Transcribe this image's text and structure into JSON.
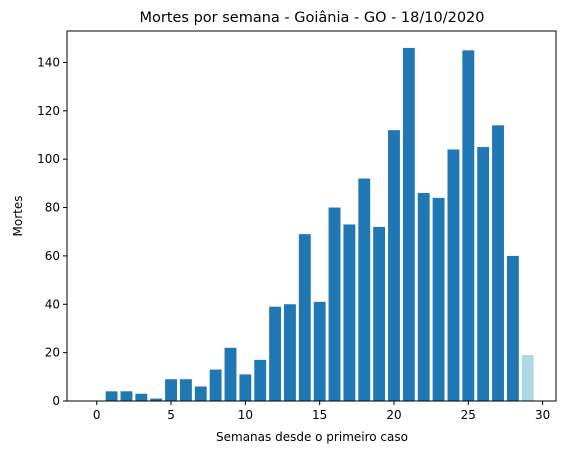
{
  "chart_data": {
    "type": "bar",
    "title": "Mortes por semana - Goiânia - GO - 18/10/2020",
    "xlabel": "Semanas desde o primeiro caso",
    "ylabel": "Mortes",
    "x": [
      0,
      1,
      2,
      3,
      4,
      5,
      6,
      7,
      8,
      9,
      10,
      11,
      12,
      13,
      14,
      15,
      16,
      17,
      18,
      19,
      20,
      21,
      22,
      23,
      24,
      25,
      26,
      27,
      28,
      29
    ],
    "values": [
      0,
      4,
      4,
      3,
      1,
      9,
      9,
      6,
      13,
      22,
      11,
      17,
      39,
      40,
      69,
      41,
      80,
      73,
      92,
      72,
      112,
      146,
      86,
      84,
      104,
      145,
      105,
      114,
      60,
      19
    ],
    "last_bar_incomplete": true,
    "xlim": [
      -2.0,
      30.9
    ],
    "ylim": [
      0,
      153
    ],
    "xticks": [
      0,
      5,
      10,
      15,
      20,
      25,
      30
    ],
    "yticks": [
      0,
      20,
      40,
      60,
      80,
      100,
      120,
      140
    ],
    "grid": false,
    "colors": {
      "bar": "#1f77b4",
      "bar_partial": "#add8e6",
      "axis": "#000000"
    }
  }
}
